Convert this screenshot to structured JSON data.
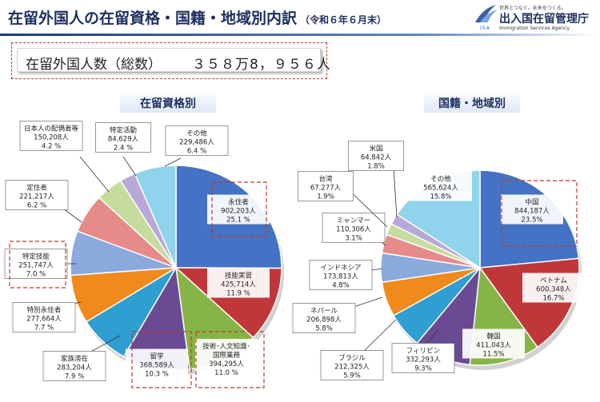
{
  "header": {
    "title": "在留外国人の在留資格・国籍・地域別内訳",
    "subtitle": "（令和６年６月末）",
    "logo": {
      "slogan": "世界とつなぐ。未来をつくる。",
      "name": "出入国在留管理庁",
      "english": "Immigration Services Agency",
      "abbr": "ISA"
    }
  },
  "total": {
    "label": "在留外国人数（総数）",
    "value": "３５８万8，９５６人"
  },
  "chart_data": [
    {
      "type": "pie",
      "title": "在留資格別",
      "start_angle_deg": 0,
      "slices": [
        {
          "name": "永住者",
          "count": "902,203人",
          "percent": "25.1 %",
          "value": 25.1,
          "color": "#4472c4",
          "highlight": true
        },
        {
          "name": "技能実習",
          "count": "425,714人",
          "percent": "11.9 %",
          "value": 11.9,
          "color": "#c0373a",
          "highlight": false
        },
        {
          "name": "技術･人文知識･国際業務",
          "name_lines": [
            "技術･人文知識･",
            "国際業務"
          ],
          "count": "394,295人",
          "percent": "11.0 %",
          "value": 11.0,
          "color": "#86b446",
          "highlight": true
        },
        {
          "name": "留学",
          "count": "368,589人",
          "percent": "10.3 %",
          "value": 10.3,
          "color": "#6a4a93",
          "highlight": true
        },
        {
          "name": "家族滞在",
          "count": "283,204人",
          "percent": "7.9 %",
          "value": 7.9,
          "color": "#2f9ed0",
          "highlight": false
        },
        {
          "name": "特別永住者",
          "count": "277,664人",
          "percent": "7.7 %",
          "value": 7.7,
          "color": "#f08a1c",
          "highlight": false
        },
        {
          "name": "特定技能",
          "count": "251,747人",
          "percent": "7.0 %",
          "value": 7.0,
          "color": "#8aa9dc",
          "highlight": true
        },
        {
          "name": "定住者",
          "count": "221,217人",
          "percent": "6.2 %",
          "value": 6.2,
          "color": "#e68a8a",
          "highlight": false
        },
        {
          "name": "日本人の配偶者等",
          "count": "150,208人",
          "percent": "4.2 %",
          "value": 4.2,
          "color": "#c6dc9c",
          "highlight": false
        },
        {
          "name": "特定活動",
          "count": "84,629人",
          "percent": "2.4 %",
          "value": 2.4,
          "color": "#b8a8d8",
          "highlight": false
        },
        {
          "name": "その他",
          "count": "229,486人",
          "percent": "6.4 %",
          "value": 6.4,
          "color": "#8fd3ec",
          "highlight": false
        }
      ]
    },
    {
      "type": "pie",
      "title": "国籍・地域別",
      "start_angle_deg": 0,
      "slices": [
        {
          "name": "中国",
          "count": "844,187人",
          "percent": "23.5%",
          "value": 23.5,
          "color": "#4472c4",
          "highlight": true
        },
        {
          "name": "ベトナム",
          "count": "600,348人",
          "percent": "16.7%",
          "value": 16.7,
          "color": "#c0373a",
          "highlight": false
        },
        {
          "name": "韓国",
          "count": "411,043人",
          "percent": "11.5%",
          "value": 11.5,
          "color": "#86b446",
          "highlight": false
        },
        {
          "name": "フィリピン",
          "count": "332,293人",
          "percent": "9.3%",
          "value": 9.3,
          "color": "#6a4a93",
          "highlight": false
        },
        {
          "name": "ブラジル",
          "count": "212,325人",
          "percent": "5.9%",
          "value": 5.9,
          "color": "#2f9ed0",
          "highlight": false
        },
        {
          "name": "ネパール",
          "count": "206,898人",
          "percent": "5.8%",
          "value": 5.8,
          "color": "#f08a1c",
          "highlight": false
        },
        {
          "name": "インドネシア",
          "count": "173,813人",
          "percent": "4.8%",
          "value": 4.8,
          "color": "#8aa9dc",
          "highlight": false
        },
        {
          "name": "ミャンマー",
          "count": "110,306人",
          "percent": "3.1%",
          "value": 3.1,
          "color": "#e68a8a",
          "highlight": false
        },
        {
          "name": "台湾",
          "count": "67,277人",
          "percent": "1.9%",
          "value": 1.9,
          "color": "#c6dc9c",
          "highlight": false
        },
        {
          "name": "米国",
          "count": "64,842人",
          "percent": "1.8%",
          "value": 1.8,
          "color": "#b8a8d8",
          "highlight": false
        },
        {
          "name": "その他",
          "count": "565,624人",
          "percent": "15.8%",
          "value": 15.8,
          "color": "#8fd3ec",
          "highlight": false
        }
      ]
    }
  ]
}
